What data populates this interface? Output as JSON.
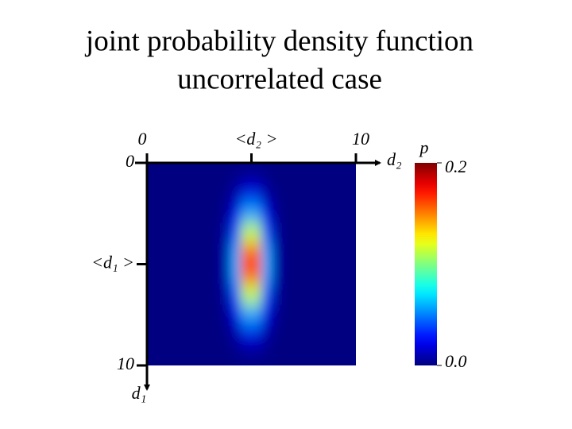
{
  "chart_data": {
    "type": "heatmap",
    "title": "joint probability density function",
    "subtitle": "uncorrelated case",
    "x_label": "d₂",
    "y_label": "d₁",
    "colorbar_label": "p",
    "xlim": [
      0,
      10
    ],
    "ylim": [
      0,
      10
    ],
    "x_axis_position": "top",
    "y_inverted": true,
    "xticks": [
      0,
      {
        "value": 5,
        "label": "<d₂ >"
      },
      10
    ],
    "yticks": [
      0,
      {
        "value": 5,
        "label": "<d₁ >"
      },
      10
    ],
    "colormap": "jet",
    "clim": [
      0,
      0.2
    ],
    "colorbar_ticks": [
      {
        "value": 0,
        "label": "0.0"
      },
      0.2
    ],
    "z": [
      [
        0,
        0,
        0,
        0,
        0,
        0,
        0,
        0,
        0.001,
        0.002,
        0.002,
        0.001,
        0,
        0,
        0,
        0,
        0,
        0,
        0,
        0
      ],
      [
        0,
        0,
        0,
        0,
        0,
        0,
        0,
        0.001,
        0.007,
        0.019,
        0.019,
        0.007,
        0.001,
        0,
        0,
        0,
        0,
        0,
        0,
        0
      ],
      [
        0,
        0,
        0,
        0,
        0,
        0,
        0,
        0.003,
        0.02,
        0.056,
        0.056,
        0.02,
        0.003,
        0,
        0,
        0,
        0,
        0,
        0,
        0
      ],
      [
        0,
        0,
        0,
        0,
        0,
        0,
        0,
        0.006,
        0.041,
        0.112,
        0.112,
        0.041,
        0.006,
        0,
        0,
        0,
        0,
        0,
        0,
        0
      ],
      [
        0,
        0,
        0,
        0,
        0,
        0,
        0,
        0.008,
        0.058,
        0.158,
        0.158,
        0.058,
        0.008,
        0,
        0,
        0,
        0,
        0,
        0,
        0
      ],
      [
        0,
        0,
        0,
        0,
        0,
        0,
        0,
        0.008,
        0.058,
        0.158,
        0.158,
        0.058,
        0.008,
        0,
        0,
        0,
        0,
        0,
        0,
        0
      ],
      [
        0,
        0,
        0,
        0,
        0,
        0,
        0,
        0.006,
        0.041,
        0.112,
        0.112,
        0.041,
        0.006,
        0,
        0,
        0,
        0,
        0,
        0,
        0
      ],
      [
        0,
        0,
        0,
        0,
        0,
        0,
        0,
        0.003,
        0.02,
        0.056,
        0.056,
        0.02,
        0.003,
        0,
        0,
        0,
        0,
        0,
        0,
        0
      ],
      [
        0,
        0,
        0,
        0,
        0,
        0,
        0,
        0.001,
        0.007,
        0.019,
        0.019,
        0.007,
        0.001,
        0,
        0,
        0,
        0,
        0,
        0,
        0
      ],
      [
        0,
        0,
        0,
        0,
        0,
        0,
        0,
        0,
        0.001,
        0.002,
        0.002,
        0.001,
        0,
        0,
        0,
        0,
        0,
        0,
        0,
        0
      ]
    ]
  }
}
